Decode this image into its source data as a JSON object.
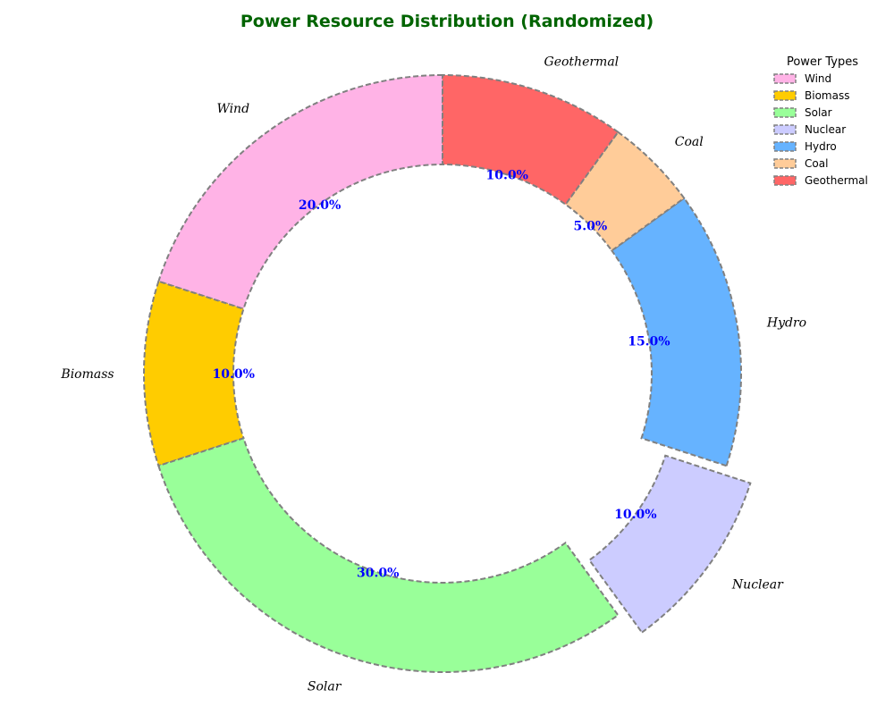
{
  "chart_data": {
    "type": "pie",
    "title": "Power Resource Distribution (Randomized)",
    "categories": [
      "Wind",
      "Biomass",
      "Solar",
      "Nuclear",
      "Hydro",
      "Coal",
      "Geothermal"
    ],
    "values": [
      20.0,
      10.0,
      30.0,
      10.0,
      15.0,
      5.0,
      10.0
    ],
    "value_labels": [
      "20.0%",
      "10.0%",
      "30.0%",
      "10.0%",
      "15.0%",
      "5.0%",
      "10.0%"
    ],
    "colors": [
      "#ffb3e6",
      "#ffcc00",
      "#99ff99",
      "#ccccff",
      "#66b3ff",
      "#ffcc99",
      "#ff6666"
    ],
    "exploded": [
      "Nuclear"
    ],
    "style": "donut",
    "start_angle_deg": 90,
    "direction": "counterclockwise",
    "legend": {
      "title": "Power Types",
      "placement": "top-right",
      "entries": [
        "Wind",
        "Biomass",
        "Solar",
        "Nuclear",
        "Hydro",
        "Coal",
        "Geothermal"
      ]
    },
    "title_color": "#006400",
    "percent_label_color": "#0000ff",
    "edge_color": "#808080"
  }
}
